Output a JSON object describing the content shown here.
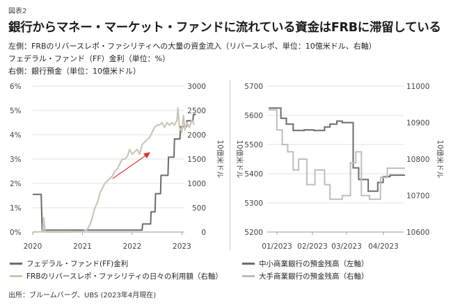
{
  "figure_label": "図表2",
  "title": "銀行からマネー・マーケット・ファンドに流れている資金はFRBに滞留している",
  "description": [
    "左側：FRBのリバースレポ・ファシリティへの大量の資金流入（リバースレポ、単位：10億米ドル、右軸）",
    "フェデラル・ファンド（FF）金利（単位：%）",
    "右側：銀行預金（単位：10億米ドル）"
  ],
  "source": "出所：ブルームバーグ、UBS (2023年4月現在)",
  "colors": {
    "dark_series": "#6b6b6b",
    "light_series": "#c8c6b8",
    "light_series2": "#bdbdbd",
    "arrow": "#e03030",
    "grid": "#d9d9d9",
    "axis_text": "#444444"
  },
  "chart_data": [
    {
      "type": "line",
      "x_ticks": [
        "2020",
        "2021",
        "2022",
        "2023"
      ],
      "y_left": {
        "ticks": [
          "0%",
          "1%",
          "2%",
          "3%",
          "4%",
          "5%",
          "6%"
        ],
        "range": [
          0,
          6
        ]
      },
      "y_right": {
        "label": "10億米ドル",
        "ticks": [
          "0",
          "500",
          "1000",
          "1500",
          "2000",
          "2500",
          "3000"
        ],
        "range": [
          0,
          3000
        ]
      },
      "series": [
        {
          "name": "フェデラル・ファンド(FF)金利",
          "axis": "left",
          "color": "#6b6b6b",
          "x": [
            2020.0,
            2020.17,
            2020.19,
            2020.25,
            2022.2,
            2022.21,
            2022.37,
            2022.38,
            2022.46,
            2022.47,
            2022.57,
            2022.58,
            2022.72,
            2022.73,
            2022.84,
            2022.85,
            2022.96,
            2022.97,
            2023.09,
            2023.1,
            2023.22,
            2023.23,
            2023.28
          ],
          "y": [
            1.55,
            1.55,
            0.08,
            0.08,
            0.08,
            0.33,
            0.33,
            0.83,
            0.83,
            1.58,
            1.58,
            2.33,
            2.33,
            3.08,
            3.08,
            3.83,
            3.83,
            4.33,
            4.33,
            4.58,
            4.58,
            4.83,
            4.83
          ]
        },
        {
          "name": "FRBのリバースレポ・ファシリティの日々の利用額（右軸）",
          "axis": "right",
          "color": "#c8c6b8",
          "x": [
            2020.0,
            2020.05,
            2020.1,
            2020.15,
            2020.2,
            2020.22,
            2020.25,
            2020.3,
            2020.5,
            2020.75,
            2021.0,
            2021.1,
            2021.15,
            2021.2,
            2021.25,
            2021.3,
            2021.35,
            2021.4,
            2021.45,
            2021.5,
            2021.55,
            2021.6,
            2021.65,
            2021.7,
            2021.75,
            2021.8,
            2021.85,
            2021.9,
            2021.95,
            2022.0,
            2022.05,
            2022.1,
            2022.15,
            2022.2,
            2022.25,
            2022.3,
            2022.35,
            2022.4,
            2022.45,
            2022.5,
            2022.55,
            2022.6,
            2022.65,
            2022.7,
            2022.75,
            2022.8,
            2022.85,
            2022.9,
            2022.92,
            2022.95,
            2023.0,
            2023.03,
            2023.06,
            2023.1,
            2023.15,
            2023.2,
            2023.25
          ],
          "y": [
            0,
            5,
            0,
            10,
            2,
            300,
            5,
            0,
            0,
            0,
            5,
            60,
            150,
            300,
            500,
            600,
            800,
            900,
            1000,
            1050,
            1100,
            1150,
            1250,
            1300,
            1400,
            1500,
            1500,
            1550,
            1700,
            1600,
            1650,
            1700,
            1600,
            1800,
            1850,
            1900,
            1950,
            2050,
            2150,
            2200,
            2200,
            2250,
            2150,
            2250,
            2200,
            2250,
            2200,
            2300,
            2550,
            2150,
            2050,
            2400,
            2100,
            2250,
            2150,
            2300,
            2200
          ]
        }
      ],
      "annotation": "arrow"
    },
    {
      "type": "line",
      "x_ticks": [
        "01/2023",
        "02/2023",
        "03/2023",
        "04/2023"
      ],
      "y_left": {
        "label": "10億米ドル",
        "ticks": [
          "5200",
          "5300",
          "5400",
          "5500",
          "5600",
          "5700"
        ],
        "range": [
          5200,
          5700
        ]
      },
      "y_right": {
        "label": "10億米ドル",
        "ticks": [
          "10600",
          "10700",
          "10800",
          "10900",
          "11000"
        ],
        "range": [
          10600,
          11000
        ]
      },
      "series": [
        {
          "name": "中小商業銀行の預金残高（左軸）",
          "axis": "left",
          "color": "#6b6b6b",
          "x": [
            0,
            0.09,
            0.09,
            0.13,
            0.13,
            0.18,
            0.18,
            0.26,
            0.26,
            0.33,
            0.33,
            0.41,
            0.41,
            0.45,
            0.45,
            0.5,
            0.5,
            0.54,
            0.54,
            0.62,
            0.62,
            0.66,
            0.66,
            0.73,
            0.73,
            0.8,
            0.8,
            0.84,
            0.84,
            0.89,
            0.89,
            1.0
          ],
          "y": [
            5625,
            5625,
            5590,
            5590,
            5570,
            5570,
            5548,
            5548,
            5550,
            5550,
            5548,
            5548,
            5560,
            5560,
            5570,
            5570,
            5580,
            5580,
            5575,
            5575,
            5420,
            5420,
            5380,
            5380,
            5340,
            5340,
            5370,
            5370,
            5390,
            5390,
            5395,
            5395
          ]
        },
        {
          "name": "大手商業銀行の預金残高（右軸）",
          "axis": "right",
          "color": "#bdbdbd",
          "x": [
            0,
            0.06,
            0.06,
            0.1,
            0.1,
            0.14,
            0.14,
            0.18,
            0.18,
            0.22,
            0.22,
            0.28,
            0.28,
            0.34,
            0.34,
            0.41,
            0.41,
            0.45,
            0.45,
            0.54,
            0.54,
            0.6,
            0.6,
            0.64,
            0.64,
            0.68,
            0.68,
            0.74,
            0.74,
            0.82,
            0.82,
            0.87,
            0.87,
            1.0
          ],
          "y": [
            10935,
            10935,
            10880,
            10880,
            10840,
            10840,
            10820,
            10820,
            10770,
            10770,
            10800,
            10800,
            10730,
            10730,
            10770,
            10770,
            10730,
            10730,
            10690,
            10690,
            10700,
            10700,
            10790,
            10790,
            10820,
            10820,
            10700,
            10700,
            10690,
            10690,
            10750,
            10750,
            10775,
            10775
          ]
        }
      ]
    }
  ],
  "legends": {
    "left": [
      "フェデラル・ファンド(FF)金利",
      "FRBのリバースレポ・ファシリティの日々の利用額（右軸）"
    ],
    "right": [
      "中小商業銀行の預金残高（左軸）",
      "大手商業銀行の預金残高（右軸）"
    ]
  }
}
